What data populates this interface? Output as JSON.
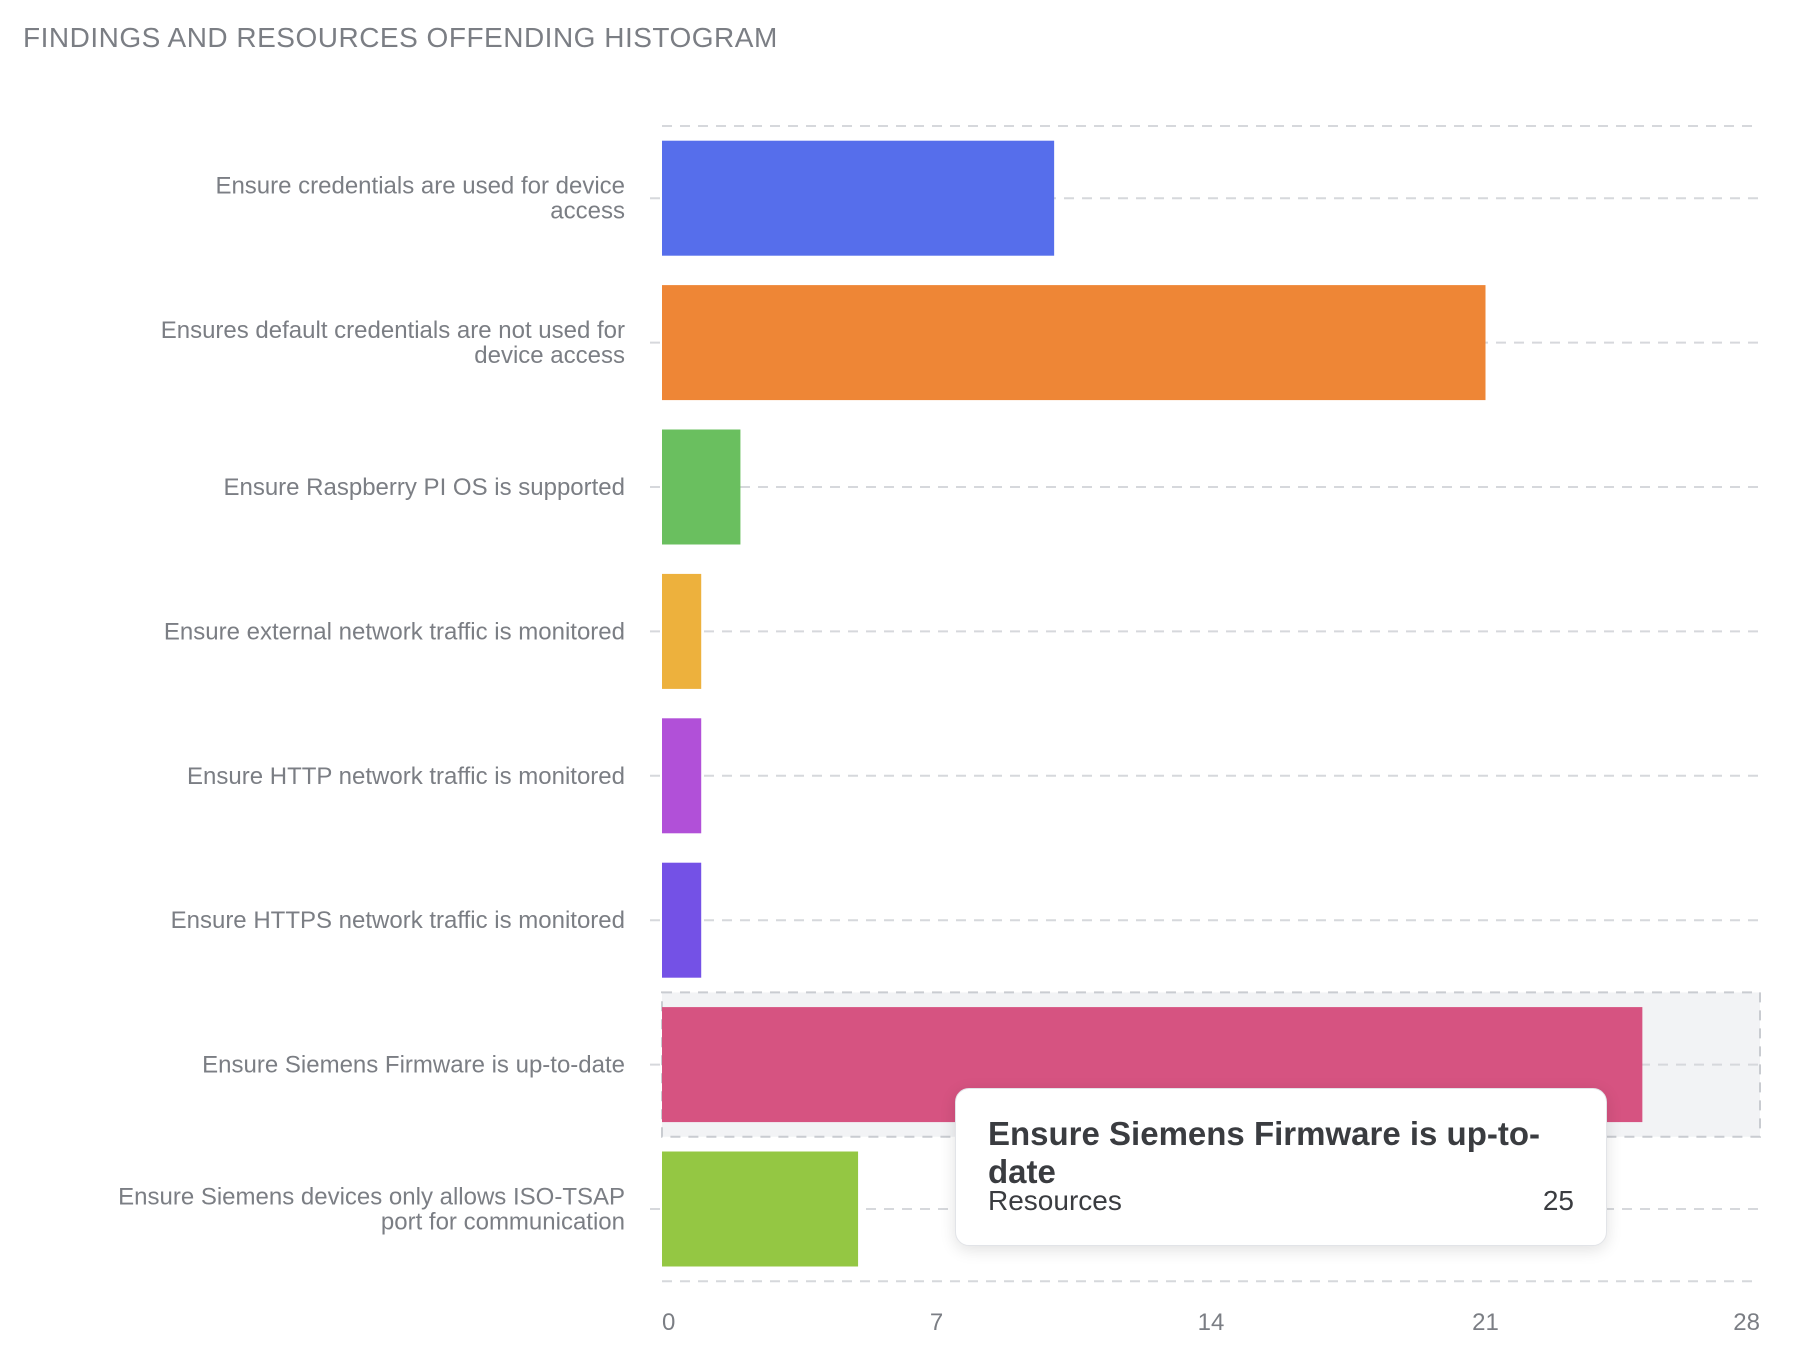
{
  "title": "FINDINGS AND RESOURCES OFFENDING HISTOGRAM",
  "chart_data": {
    "type": "bar",
    "orientation": "horizontal",
    "title": "FINDINGS AND RESOURCES OFFENDING HISTOGRAM",
    "xlabel": "",
    "ylabel": "",
    "xlim": [
      0,
      28
    ],
    "x_ticks": [
      0,
      7,
      14,
      21,
      28
    ],
    "grid": true,
    "categories": [
      "Ensure credentials are used for device access",
      "Ensures default credentials are not used for device access",
      "Ensure Raspberry PI OS is supported",
      "Ensure external network traffic is monitored",
      "Ensure HTTP network traffic is monitored",
      "Ensure HTTPS network traffic is monitored",
      "Ensure Siemens Firmware is up-to-date",
      "Ensure Siemens devices only allows ISO-TSAP port for communication"
    ],
    "values": [
      10,
      21,
      2,
      1,
      1,
      1,
      25,
      5
    ],
    "colors": [
      "#566eeb",
      "#ee8636",
      "#6abf5f",
      "#edb13d",
      "#b150d8",
      "#7451e6",
      "#d65381",
      "#94c743"
    ],
    "highlighted_category": "Ensure Siemens Firmware is up-to-date"
  },
  "tooltip": {
    "title": "Ensure Siemens Firmware is up-to-date",
    "label": "Resources",
    "value": "25"
  }
}
